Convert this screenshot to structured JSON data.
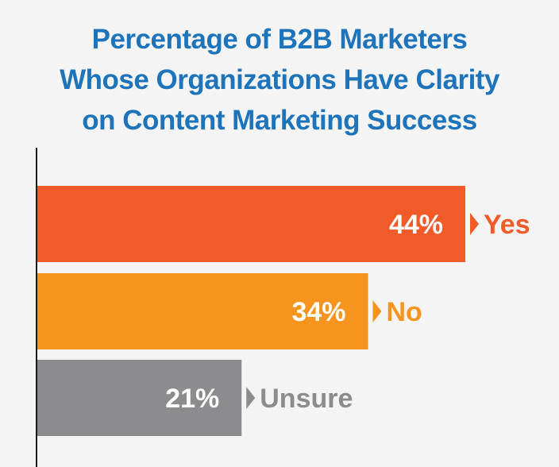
{
  "title_lines": [
    "Percentage of B2B Marketers",
    "Whose Organizations Have Clarity",
    "on Content Marketing Success"
  ],
  "chart_data": {
    "type": "bar",
    "orientation": "horizontal",
    "categories": [
      "Yes",
      "No",
      "Unsure"
    ],
    "values": [
      44,
      34,
      21
    ],
    "value_labels": [
      "44%",
      "34%",
      "21%"
    ],
    "colors": [
      "#f15a29",
      "#f7941d",
      "#8c8c8f"
    ],
    "label_colors": [
      "#f15a29",
      "#f7941d",
      "#8c8c8f"
    ],
    "title": "Percentage of B2B Marketers Whose Organizations Have Clarity on Content Marketing Success",
    "xlabel": "",
    "ylabel": "",
    "xlim": [
      0,
      44
    ],
    "grid": false
  }
}
